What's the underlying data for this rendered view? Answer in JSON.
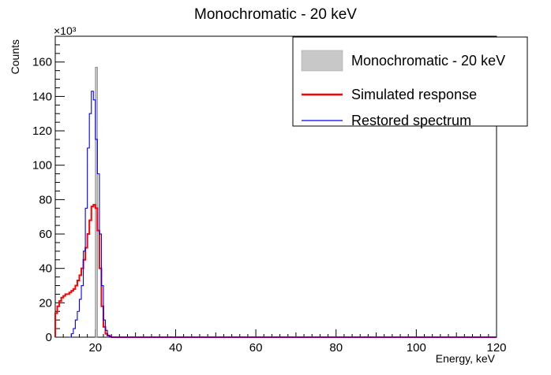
{
  "chart_data": {
    "type": "histogram",
    "title": "Monochromatic - 20 keV",
    "xlabel": "Energy, keV",
    "ylabel": "Counts",
    "y_multiplier_label": "×10³",
    "xlim": [
      10,
      120
    ],
    "ylim": [
      0,
      175
    ],
    "x_ticks": [
      20,
      40,
      60,
      80,
      100,
      120
    ],
    "y_ticks": [
      0,
      20,
      40,
      60,
      80,
      100,
      120,
      140,
      160
    ],
    "bin_width": 0.5,
    "legend_position": "top-right",
    "series": [
      {
        "name": "Monochromatic - 20 keV",
        "style": "filled-bar",
        "color": "#c8c8c8",
        "x": [
          20.0
        ],
        "values": [
          157
        ]
      },
      {
        "name": "Simulated response",
        "style": "step",
        "color": "#ff0000",
        "x": [
          10.0,
          10.5,
          11.0,
          11.5,
          12.0,
          12.5,
          13.0,
          13.5,
          14.0,
          14.5,
          15.0,
          15.5,
          16.0,
          16.5,
          17.0,
          17.5,
          18.0,
          18.5,
          19.0,
          19.5,
          20.0,
          20.5,
          21.0,
          21.5,
          22.0,
          22.5,
          23.0,
          23.5,
          24.0
        ],
        "values": [
          14,
          18,
          21,
          23,
          24,
          25,
          25,
          26,
          27,
          28,
          30,
          33,
          36,
          40,
          45,
          52,
          60,
          68,
          76,
          77,
          75,
          62,
          40,
          18,
          6,
          2,
          1,
          0.5,
          0
        ]
      },
      {
        "name": "Restored spectrum",
        "style": "step",
        "color": "#0000ff",
        "x": [
          13.5,
          14.0,
          14.5,
          15.0,
          15.5,
          16.0,
          16.5,
          17.0,
          17.5,
          18.0,
          18.5,
          19.0,
          19.5,
          20.0,
          20.5,
          21.0,
          21.5,
          22.0,
          22.5,
          23.0,
          23.5,
          24.0
        ],
        "values": [
          0,
          2,
          5,
          10,
          15,
          22,
          30,
          50,
          75,
          110,
          130,
          143,
          138,
          115,
          95,
          60,
          30,
          10,
          4,
          1,
          0.5,
          0
        ]
      }
    ]
  }
}
